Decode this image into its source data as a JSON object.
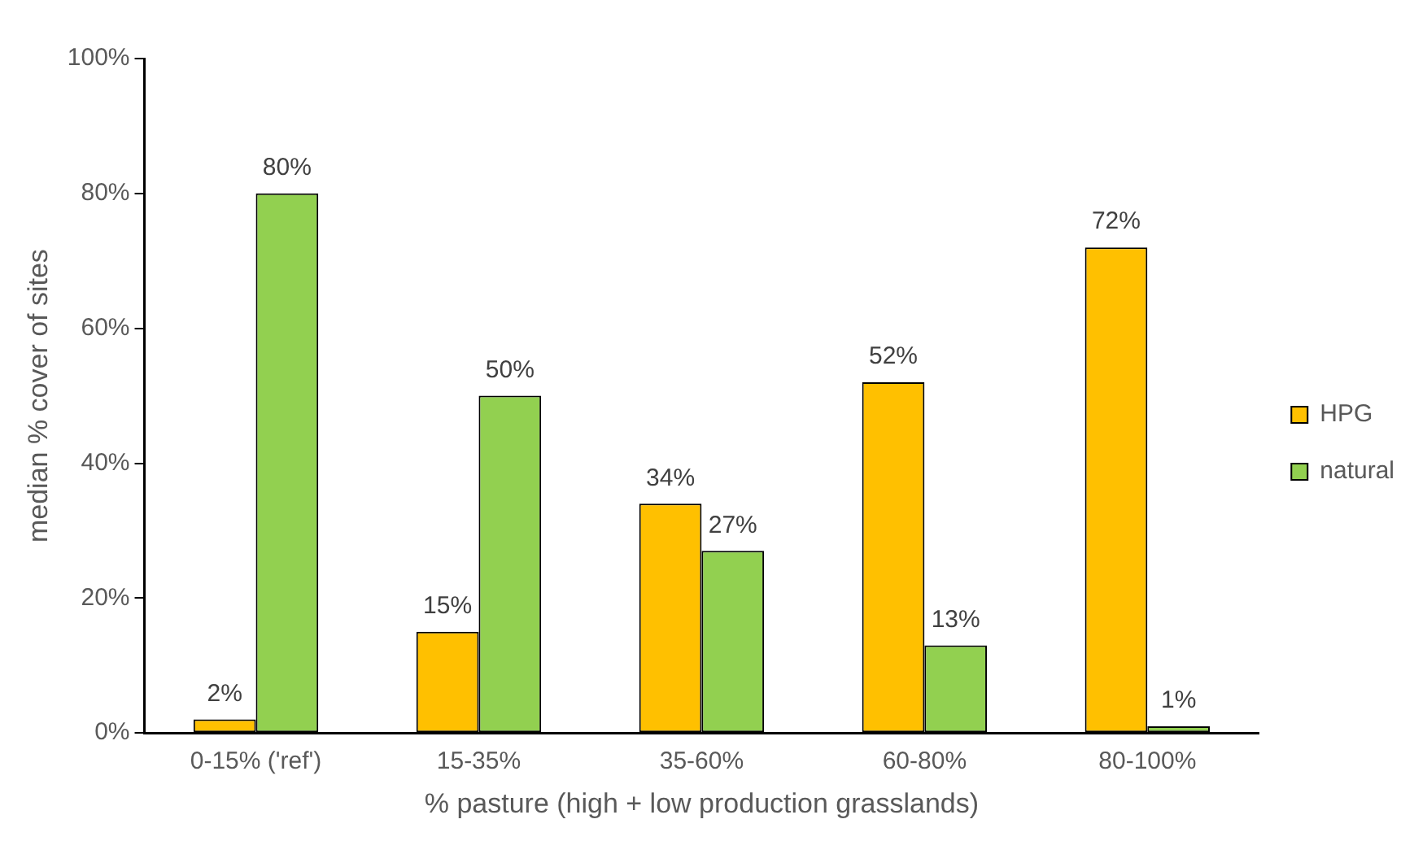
{
  "chart_data": {
    "type": "bar",
    "xlabel": "% pasture (high + low production grasslands)",
    "ylabel": "median % cover of sites",
    "categories": [
      "0-15% ('ref')",
      "15-35%",
      "35-60%",
      "60-80%",
      "80-100%"
    ],
    "series": [
      {
        "name": "HPG",
        "color": "#ffc000",
        "values": [
          2,
          15,
          34,
          52,
          72
        ],
        "value_labels": [
          "2%",
          "15%",
          "34%",
          "52%",
          "72%"
        ]
      },
      {
        "name": "natural",
        "color": "#92d050",
        "values": [
          80,
          50,
          27,
          13,
          1
        ],
        "value_labels": [
          "80%",
          "50%",
          "27%",
          "13%",
          "1%"
        ]
      }
    ],
    "ylim": [
      0,
      100
    ],
    "yticks": [
      {
        "value": 0,
        "label": "0%"
      },
      {
        "value": 20,
        "label": "20%"
      },
      {
        "value": 40,
        "label": "40%"
      },
      {
        "value": 60,
        "label": "60%"
      },
      {
        "value": 80,
        "label": "80%"
      },
      {
        "value": 100,
        "label": "100%"
      }
    ],
    "grid": false,
    "legend": "right"
  }
}
